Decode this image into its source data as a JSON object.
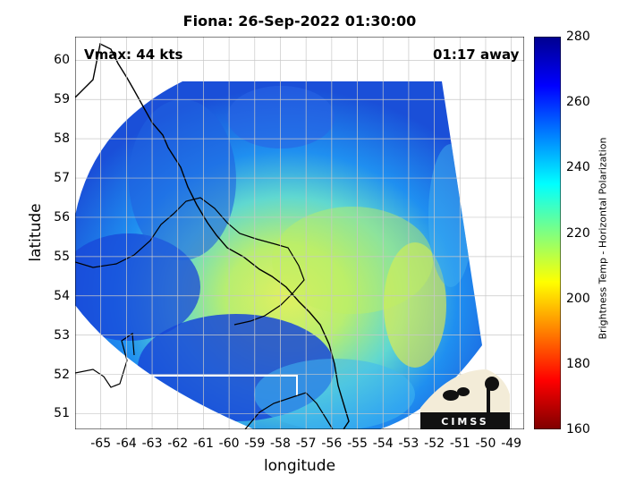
{
  "title": "Fiona: 26-Sep-2022 01:30:00",
  "annotations": {
    "vmax": "Vmax: 44 kts",
    "time_away": "01:17 away"
  },
  "axes": {
    "xlabel": "longitude",
    "ylabel": "latitude",
    "x_ticks": [
      "-65",
      "-64",
      "-63",
      "-62",
      "-61",
      "-60",
      "-59",
      "-58",
      "-57",
      "-56",
      "-55",
      "-54",
      "-53",
      "-52",
      "-51",
      "-50",
      "-49"
    ],
    "y_ticks": [
      "60",
      "59",
      "58",
      "57",
      "56",
      "55",
      "54",
      "53",
      "52",
      "51"
    ],
    "xlim": [
      -66,
      -48.5
    ],
    "ylim": [
      50.6,
      60.6
    ],
    "grid": true
  },
  "colorbar": {
    "label": "Brightness Temp - Horizontal Polarization",
    "ticks": [
      "280",
      "260",
      "240",
      "220",
      "200",
      "180",
      "160"
    ],
    "range": [
      160,
      280
    ],
    "colors": [
      "#7f0000",
      "#ff0000",
      "#ff8000",
      "#ffff00",
      "#80ff80",
      "#00ffff",
      "#0080ff",
      "#0000ff",
      "#00008f"
    ]
  },
  "logo": {
    "text": "CIMSS"
  }
}
